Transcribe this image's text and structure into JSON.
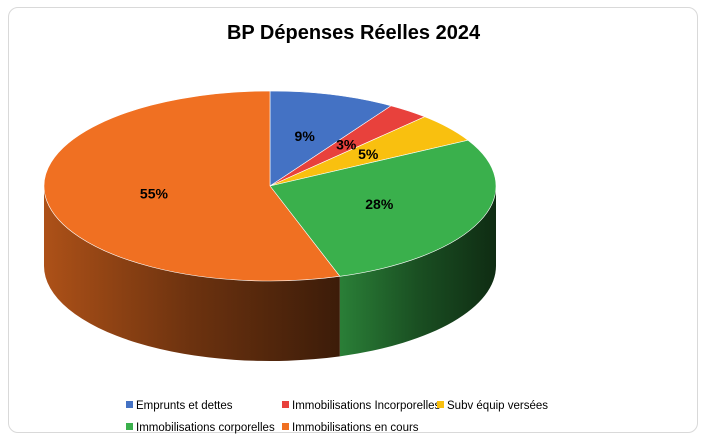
{
  "chart_data": {
    "type": "pie",
    "title": "BP Dépenses Réelles 2024",
    "slices": [
      {
        "name": "Emprunts et dettes",
        "value": 9,
        "label": "9%",
        "color": "#4472c4"
      },
      {
        "name": "Immobilisations Incorporelles",
        "value": 3,
        "label": "3%",
        "color": "#e8413c"
      },
      {
        "name": "Subv équip versées",
        "value": 5,
        "label": "5%",
        "color": "#f9c00f"
      },
      {
        "name": "Immobilisations corporelles",
        "value": 28,
        "label": "28%",
        "color": "#3ab04c"
      },
      {
        "name": "Immobilisations en cours",
        "value": 55,
        "label": "55%",
        "color": "#f07022"
      }
    ],
    "legend_position": "bottom",
    "three_d": true
  }
}
